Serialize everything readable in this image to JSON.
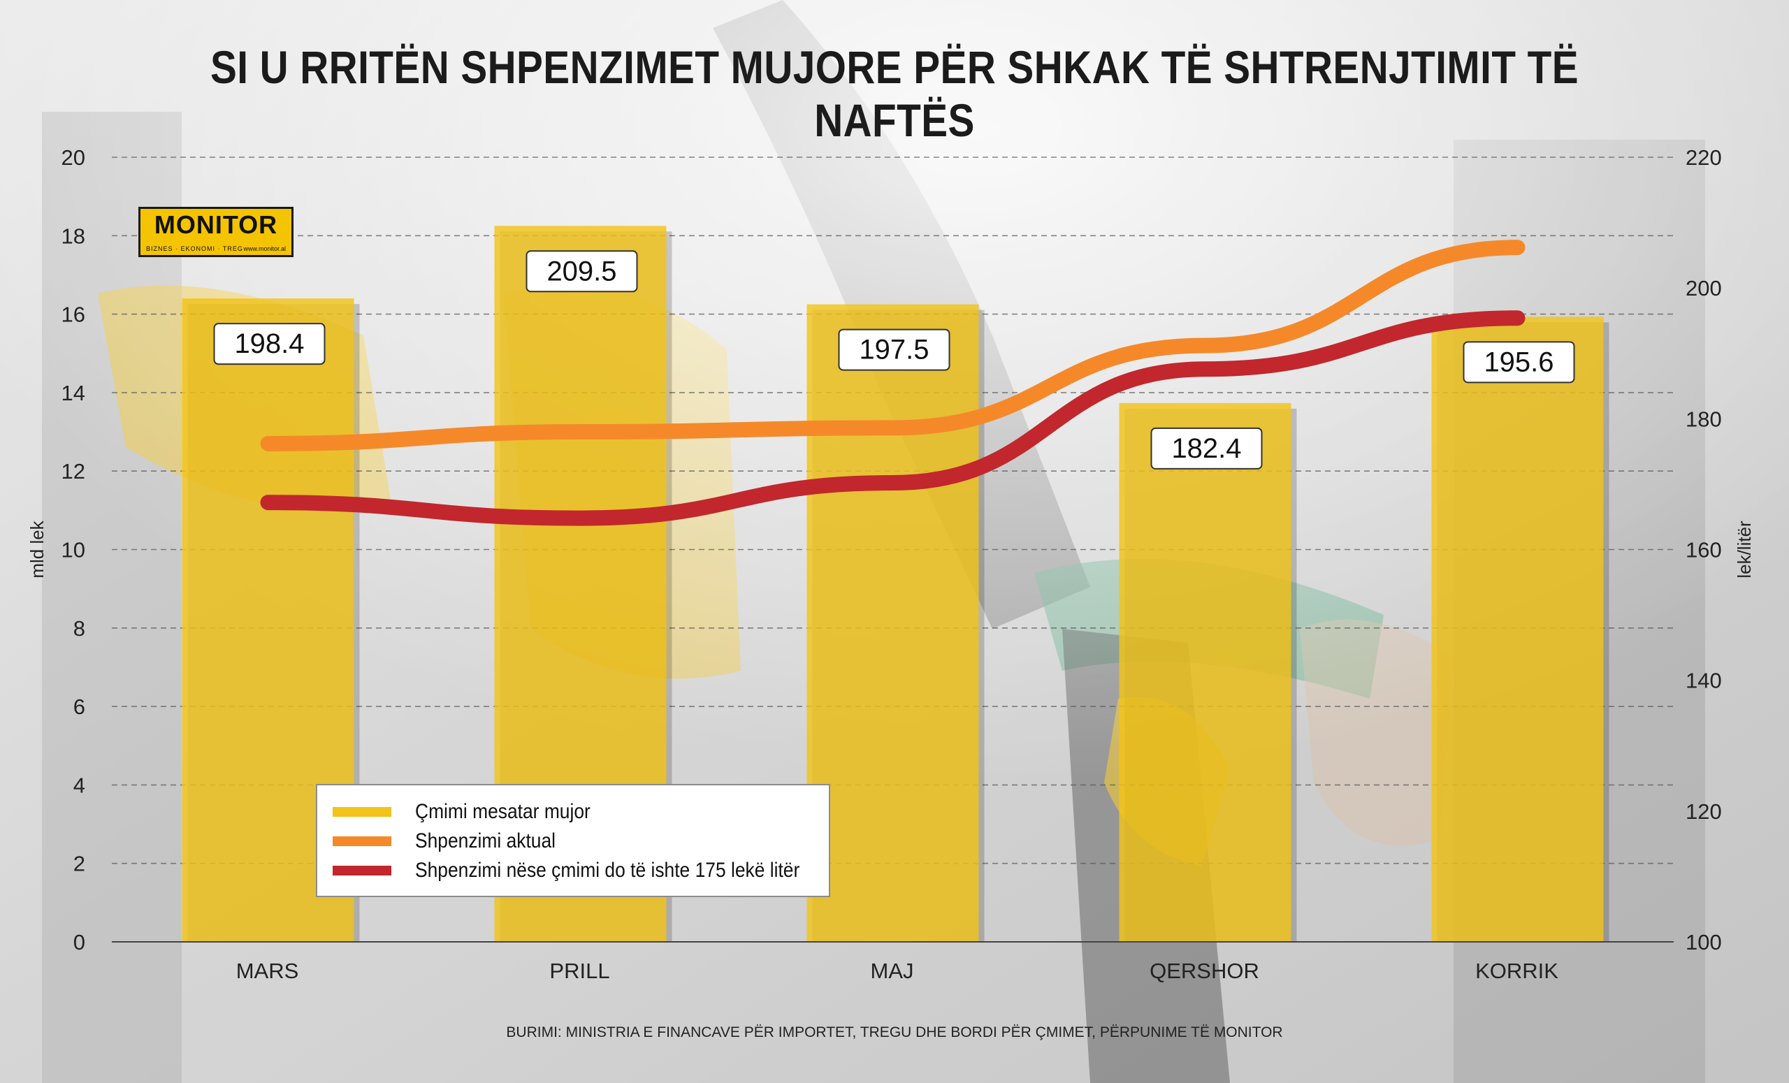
{
  "title": "SI U RRITËN SHPENZIMET MUJORE PËR SHKAK TË SHTRENJTIMIT TË NAFTËS",
  "logo": {
    "name": "MONITOR",
    "tagline": "BIZNES · EKONOMI · TREG",
    "url": "www.monitor.al"
  },
  "legend": [
    {
      "label": "Çmimi mesatar mujor",
      "color": "#f2c31a"
    },
    {
      "label": "Shpenzimi aktual",
      "color": "#f5892a"
    },
    {
      "label": "Shpenzimi nëse çmimi do të ishte 175 lekë litër",
      "color": "#c1272d"
    }
  ],
  "source": "BURIMI: MINISTRIA E FINANCAVE PËR IMPORTET, TREGU DHE BORDI PËR ÇMIMET, PËRPUNIME TË MONITOR",
  "chart_data": {
    "type": "bar",
    "categories": [
      "MARS",
      "PRILL",
      "MAJ",
      "QERSHOR",
      "KORRIK"
    ],
    "y_left": {
      "label": "mld lek",
      "range": [
        0,
        20
      ],
      "ticks": [
        "0",
        "2",
        "4",
        "6",
        "8",
        "10",
        "12",
        "14",
        "16",
        "18",
        "20"
      ]
    },
    "y_right": {
      "label": "lek/litër",
      "range": [
        100,
        220
      ],
      "ticks": [
        "100",
        "120",
        "140",
        "160",
        "180",
        "200",
        "220"
      ]
    },
    "grid": "dashed horizontal",
    "series": [
      {
        "name": "Çmimi mesatar mujor",
        "type": "bar",
        "axis": "right",
        "color": "#f2c31a",
        "values": [
          198.4,
          209.5,
          197.5,
          182.4,
          195.6
        ],
        "labels": [
          "198.4",
          "209.5",
          "197.5",
          "182.4",
          "195.6"
        ]
      },
      {
        "name": "Shpenzimi aktual",
        "type": "line",
        "axis": "left",
        "color": "#f5892a",
        "values": [
          12.7,
          13.0,
          13.1,
          15.2,
          17.7
        ]
      },
      {
        "name": "Shpenzimi nëse çmimi do të ishte 175 lekë litër",
        "type": "line",
        "axis": "left",
        "color": "#c1272d",
        "values": [
          11.2,
          10.8,
          11.7,
          14.6,
          15.9
        ]
      }
    ],
    "legend_position": "bottom-left"
  }
}
